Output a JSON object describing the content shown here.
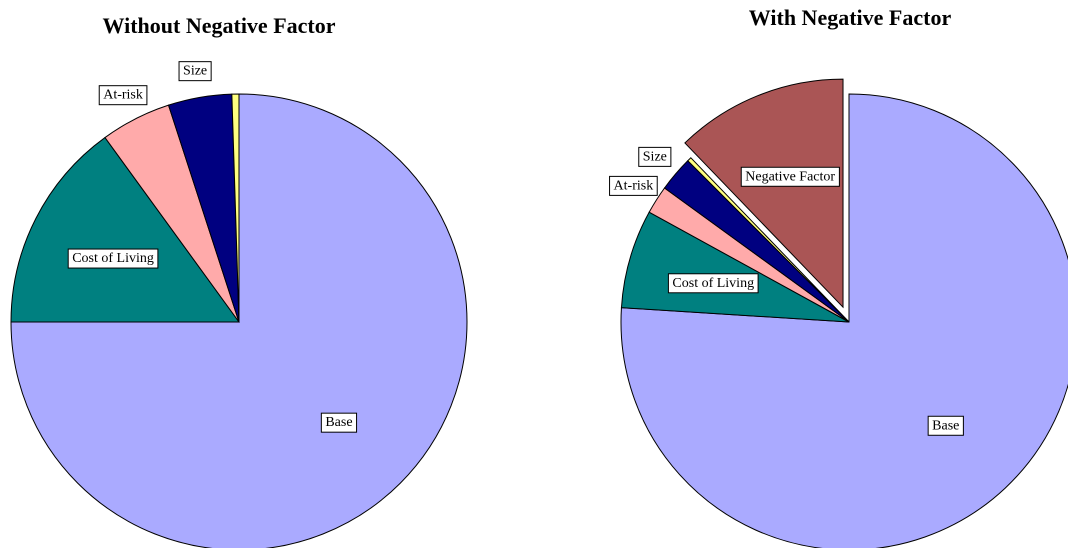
{
  "chart_data": [
    {
      "type": "pie",
      "title": "Without Negative Factor",
      "categories": [
        "Base",
        "Cost of Living",
        "At-risk",
        "Size",
        null
      ],
      "values": [
        75,
        15,
        5,
        4.5,
        0.5
      ],
      "colors": [
        "#aaaaff",
        "#008080",
        "#ffaaaa",
        "#000080",
        "#ffff80"
      ]
    },
    {
      "type": "pie",
      "title": "With Negative Factor",
      "categories": [
        "Base",
        "Cost of Living",
        "At-risk",
        "Size",
        null,
        "Negative Factor"
      ],
      "values": [
        76,
        7,
        2,
        2.5,
        0.3,
        12.2
      ],
      "colors": [
        "#aaaaff",
        "#008080",
        "#ffaaaa",
        "#000080",
        "#ffff80",
        "#aa5555"
      ],
      "exploded": "Negative Factor"
    }
  ]
}
